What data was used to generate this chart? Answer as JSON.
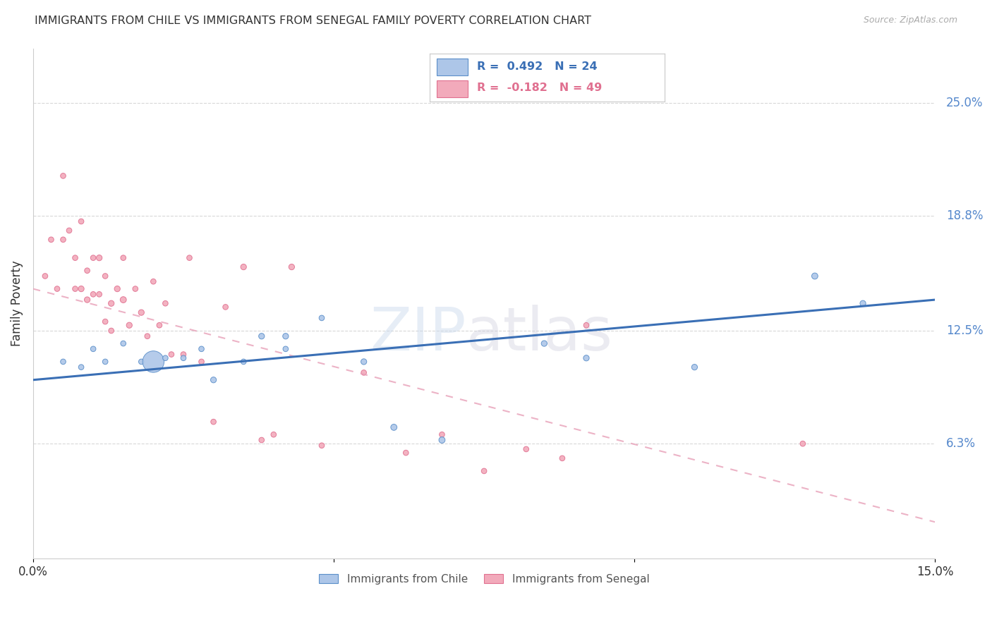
{
  "title": "IMMIGRANTS FROM CHILE VS IMMIGRANTS FROM SENEGAL FAMILY POVERTY CORRELATION CHART",
  "source": "Source: ZipAtlas.com",
  "ylabel": "Family Poverty",
  "xlim": [
    0.0,
    0.15
  ],
  "ylim": [
    0.0,
    0.28
  ],
  "yticks": [
    0.063,
    0.125,
    0.188,
    0.25
  ],
  "ytick_labels": [
    "6.3%",
    "12.5%",
    "18.8%",
    "25.0%"
  ],
  "xticks": [
    0.0,
    0.05,
    0.1,
    0.15
  ],
  "xtick_labels": [
    "0.0%",
    "",
    "",
    "15.0%"
  ],
  "chile_R": 0.492,
  "chile_N": 24,
  "senegal_R": -0.182,
  "senegal_N": 49,
  "chile_color": "#adc6e8",
  "senegal_color": "#f2aabb",
  "chile_edge_color": "#5b8fc9",
  "senegal_edge_color": "#e07090",
  "trendline_chile_color": "#3a6fb5",
  "trendline_senegal_color": "#e8a0b8",
  "background_color": "#ffffff",
  "grid_color": "#d8d8d8",
  "axis_label_color": "#5588cc",
  "legend_color_chile": "#adc6e8",
  "legend_color_senegal": "#f2aabb",
  "chile_x": [
    0.005,
    0.008,
    0.01,
    0.012,
    0.015,
    0.018,
    0.02,
    0.022,
    0.025,
    0.028,
    0.03,
    0.035,
    0.038,
    0.042,
    0.042,
    0.048,
    0.055,
    0.06,
    0.068,
    0.085,
    0.092,
    0.11,
    0.13,
    0.138
  ],
  "chile_y": [
    0.108,
    0.105,
    0.115,
    0.108,
    0.118,
    0.108,
    0.108,
    0.11,
    0.11,
    0.115,
    0.098,
    0.108,
    0.122,
    0.122,
    0.115,
    0.132,
    0.108,
    0.072,
    0.065,
    0.118,
    0.11,
    0.105,
    0.155,
    0.14
  ],
  "chile_sizes": [
    30,
    30,
    30,
    30,
    30,
    30,
    480,
    30,
    30,
    30,
    35,
    30,
    35,
    35,
    30,
    30,
    35,
    40,
    40,
    35,
    35,
    35,
    40,
    35
  ],
  "senegal_x": [
    0.002,
    0.003,
    0.004,
    0.005,
    0.005,
    0.006,
    0.007,
    0.007,
    0.008,
    0.008,
    0.009,
    0.009,
    0.01,
    0.01,
    0.011,
    0.011,
    0.012,
    0.012,
    0.013,
    0.013,
    0.014,
    0.015,
    0.015,
    0.016,
    0.017,
    0.018,
    0.019,
    0.02,
    0.021,
    0.022,
    0.023,
    0.025,
    0.026,
    0.028,
    0.03,
    0.032,
    0.035,
    0.038,
    0.04,
    0.043,
    0.048,
    0.055,
    0.062,
    0.068,
    0.075,
    0.082,
    0.088,
    0.092,
    0.128
  ],
  "senegal_y": [
    0.155,
    0.175,
    0.148,
    0.21,
    0.175,
    0.18,
    0.148,
    0.165,
    0.148,
    0.185,
    0.158,
    0.142,
    0.145,
    0.165,
    0.165,
    0.145,
    0.155,
    0.13,
    0.14,
    0.125,
    0.148,
    0.142,
    0.165,
    0.128,
    0.148,
    0.135,
    0.122,
    0.152,
    0.128,
    0.14,
    0.112,
    0.112,
    0.165,
    0.108,
    0.075,
    0.138,
    0.16,
    0.065,
    0.068,
    0.16,
    0.062,
    0.102,
    0.058,
    0.068,
    0.048,
    0.06,
    0.055,
    0.128,
    0.063
  ],
  "senegal_sizes": [
    30,
    30,
    30,
    30,
    30,
    30,
    30,
    30,
    35,
    30,
    30,
    35,
    30,
    30,
    35,
    30,
    30,
    30,
    35,
    30,
    35,
    40,
    30,
    35,
    30,
    35,
    30,
    30,
    30,
    30,
    30,
    30,
    30,
    30,
    30,
    30,
    35,
    30,
    30,
    35,
    30,
    30,
    30,
    30,
    30,
    30,
    30,
    30,
    30
  ],
  "chile_trendline_x0": 0.0,
  "chile_trendline_y0": 0.098,
  "chile_trendline_x1": 0.15,
  "chile_trendline_y1": 0.142,
  "senegal_trendline_x0": 0.0,
  "senegal_trendline_y0": 0.148,
  "senegal_trendline_x1": 0.15,
  "senegal_trendline_y1": 0.02
}
